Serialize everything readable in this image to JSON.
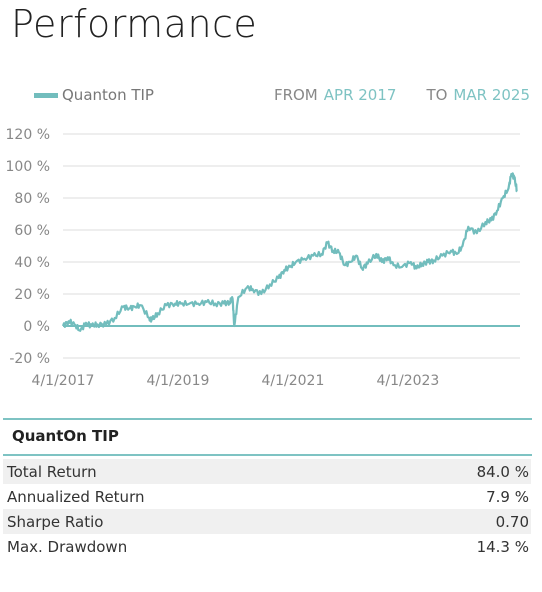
{
  "title": "Performance",
  "legend": {
    "label": "Quanton TIP",
    "color": "#72bdbd"
  },
  "range": {
    "from_label": "FROM",
    "from_value": "APR 2017",
    "to_label": "TO",
    "to_value": "MAR 2025"
  },
  "chart_data": {
    "type": "line",
    "ylim": [
      -20,
      120
    ],
    "y_ticks": [
      120,
      100,
      80,
      60,
      40,
      20,
      0,
      -20
    ],
    "y_tick_labels": [
      "120 %",
      "100 %",
      "80 %",
      "60 %",
      "40 %",
      "20 %",
      "0 %",
      "-20 %"
    ],
    "x_tick_labels": [
      "4/1/2017",
      "4/1/2019",
      "4/1/2021",
      "4/1/2023"
    ],
    "x_tick_positions": [
      2017.25,
      2019.25,
      2021.25,
      2023.25
    ],
    "xlim": [
      2017.25,
      2025.2
    ],
    "grid": true,
    "legend_position": "top-left",
    "series": [
      {
        "name": "Quanton TIP",
        "color": "#72bdbd",
        "x": [
          2017.25,
          2017.35,
          2017.45,
          2017.55,
          2017.65,
          2017.75,
          2017.85,
          2018.0,
          2018.15,
          2018.3,
          2018.4,
          2018.5,
          2018.6,
          2018.75,
          2018.8,
          2018.9,
          2019.05,
          2019.2,
          2019.3,
          2019.45,
          2019.6,
          2019.75,
          2019.9,
          2020.05,
          2020.15,
          2020.2,
          2020.23,
          2020.3,
          2020.45,
          2020.55,
          2020.7,
          2020.85,
          2021.0,
          2021.1,
          2021.2,
          2021.3,
          2021.45,
          2021.6,
          2021.75,
          2021.85,
          2021.95,
          2022.05,
          2022.15,
          2022.25,
          2022.35,
          2022.45,
          2022.55,
          2022.7,
          2022.8,
          2022.9,
          2023.0,
          2023.15,
          2023.3,
          2023.4,
          2023.5,
          2023.6,
          2023.7,
          2023.85,
          2024.0,
          2024.1,
          2024.2,
          2024.3,
          2024.45,
          2024.6,
          2024.7,
          2024.8,
          2024.9,
          2025.0,
          2025.05,
          2025.1,
          2025.15
        ],
        "values": [
          0,
          3,
          1,
          -3,
          2,
          0,
          1,
          1,
          5,
          12,
          11,
          12,
          13,
          5,
          4,
          8,
          13,
          14,
          14,
          14,
          14,
          15,
          14,
          14,
          15,
          17,
          0,
          18,
          24,
          23,
          20,
          26,
          30,
          35,
          37,
          40,
          42,
          44,
          45,
          52,
          47,
          46,
          38,
          40,
          44,
          36,
          39,
          45,
          40,
          43,
          38,
          37,
          40,
          36,
          39,
          40,
          41,
          44,
          47,
          45,
          50,
          62,
          58,
          65,
          66,
          72,
          80,
          86,
          95,
          93,
          84
        ]
      }
    ]
  },
  "stats": {
    "heading": "QuantOn TIP",
    "rows": [
      {
        "label": "Total Return",
        "value": "84.0 %"
      },
      {
        "label": "Annualized Return",
        "value": "7.9 %"
      },
      {
        "label": "Sharpe Ratio",
        "value": "0.70"
      },
      {
        "label": "Max. Drawdown",
        "value": "14.3 %"
      }
    ]
  }
}
